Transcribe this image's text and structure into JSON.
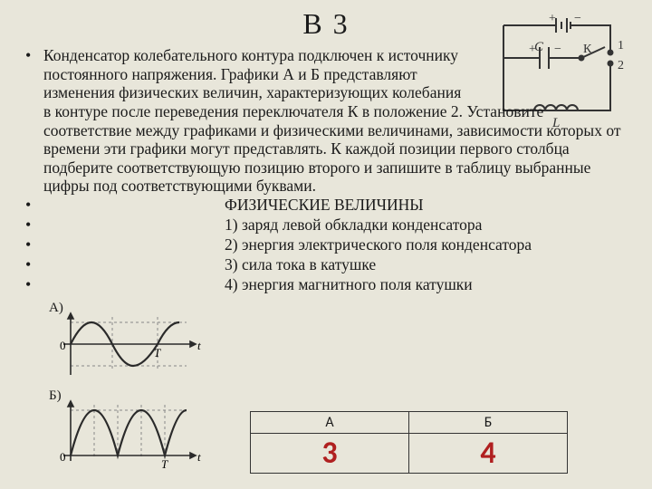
{
  "title": "В 3",
  "main_paragraph": "Конденсатор колебательного контура подключен к источнику постоянного напряжения. Графики А и Б представляют изменения физических величин, характеризующих колебания в контуре после переведения переключателя К в положение 2. Установите соответствие между графиками и физическими величинами, зависимости которых от времени эти графики могут представлять. К каждой позиции первого столбца подберите соответствующую позицию второго и запишите в таблицу выбранные цифры под соответствующими буквами.",
  "phys_header": "ФИЗИЧЕСКИЕ ВЕЛИЧИНЫ",
  "options": [
    "1) заряд левой обкладки конденсатора",
    "2) энергия электрического поля конденсатора",
    "3) сила тока в катушке",
    "4) энергия магнитного поля катушки"
  ],
  "graphs": {
    "A": {
      "label": "А)",
      "axis_x": "t",
      "axis_0": "0",
      "tick_T": "T"
    },
    "B": {
      "label": "Б)",
      "axis_x": "t",
      "axis_0": "0",
      "tick_T": "T"
    },
    "curve_color": "#2a2a2a",
    "grid_color": "#888888",
    "line_width": 2.2
  },
  "circuit": {
    "labels": {
      "C": "С",
      "K": "К",
      "L": "L",
      "pos1": "1",
      "pos2": "2"
    },
    "stroke": "#333333",
    "line_width": 2
  },
  "answer": {
    "headers": [
      "А",
      "Б"
    ],
    "values": [
      "3",
      "4"
    ],
    "value_color": "#b02020"
  },
  "colors": {
    "background": "#e8e6da",
    "text": "#1a1a1a"
  },
  "fonts": {
    "body_family": "Times New Roman",
    "body_size_pt": 13,
    "title_size_pt": 24
  }
}
